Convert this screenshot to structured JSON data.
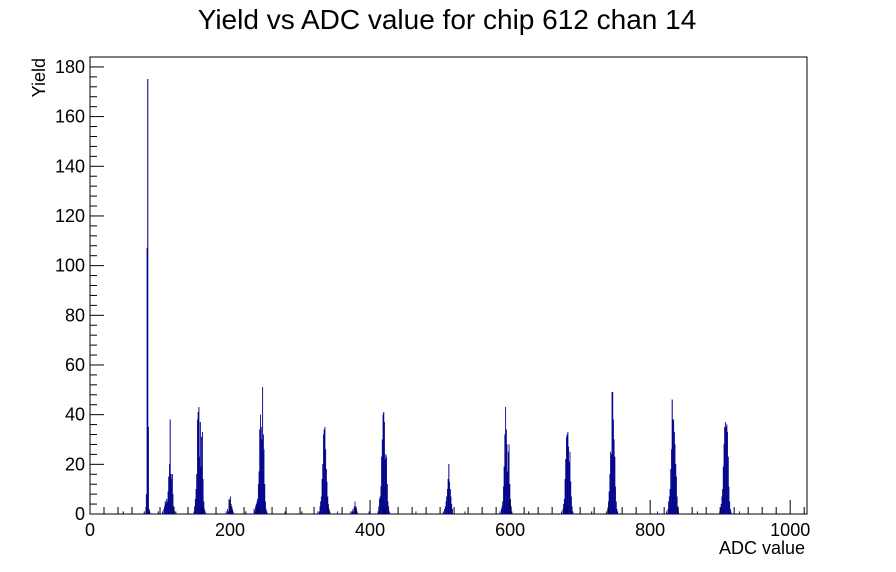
{
  "chart_data": {
    "type": "histogram",
    "title": "Yield vs ADC value for chip 612 chan 14",
    "xlabel": "ADC value",
    "ylabel": "Yield",
    "xlim": [
      0,
      1024
    ],
    "ylim": [
      0,
      184
    ],
    "x_ticks": [
      0,
      200,
      400,
      600,
      800,
      1000
    ],
    "y_ticks": [
      0,
      20,
      40,
      60,
      80,
      100,
      120,
      140,
      160,
      180
    ],
    "grid": false,
    "legend": "none",
    "line_color": "#00008b",
    "bin_width": 1,
    "bins": [
      [
        47,
        1
      ],
      [
        77,
        1
      ],
      [
        80,
        8
      ],
      [
        81,
        107
      ],
      [
        82,
        175
      ],
      [
        83,
        35
      ],
      [
        84,
        2
      ],
      [
        85,
        1
      ],
      [
        97,
        1
      ],
      [
        103,
        1
      ],
      [
        105,
        2
      ],
      [
        106,
        3
      ],
      [
        107,
        5
      ],
      [
        108,
        4
      ],
      [
        109,
        6
      ],
      [
        110,
        5
      ],
      [
        111,
        9
      ],
      [
        112,
        15
      ],
      [
        113,
        20
      ],
      [
        114,
        38
      ],
      [
        115,
        16
      ],
      [
        116,
        14
      ],
      [
        117,
        16
      ],
      [
        118,
        8
      ],
      [
        119,
        3
      ],
      [
        120,
        1
      ],
      [
        122,
        1
      ],
      [
        148,
        1
      ],
      [
        149,
        3
      ],
      [
        150,
        6
      ],
      [
        151,
        10
      ],
      [
        152,
        16
      ],
      [
        153,
        38
      ],
      [
        154,
        41
      ],
      [
        155,
        43
      ],
      [
        156,
        23
      ],
      [
        157,
        37
      ],
      [
        158,
        19
      ],
      [
        159,
        31
      ],
      [
        160,
        33
      ],
      [
        161,
        14
      ],
      [
        162,
        5
      ],
      [
        163,
        2
      ],
      [
        164,
        1
      ],
      [
        194,
        1
      ],
      [
        196,
        2
      ],
      [
        197,
        1
      ],
      [
        198,
        6
      ],
      [
        199,
        3
      ],
      [
        200,
        7
      ],
      [
        201,
        4
      ],
      [
        202,
        3
      ],
      [
        203,
        2
      ],
      [
        204,
        1
      ],
      [
        222,
        1
      ],
      [
        234,
        2
      ],
      [
        235,
        1
      ],
      [
        236,
        3
      ],
      [
        237,
        4
      ],
      [
        238,
        5
      ],
      [
        239,
        6
      ],
      [
        240,
        12
      ],
      [
        241,
        17
      ],
      [
        242,
        34
      ],
      [
        243,
        40
      ],
      [
        244,
        35
      ],
      [
        245,
        30
      ],
      [
        246,
        51
      ],
      [
        247,
        32
      ],
      [
        248,
        26
      ],
      [
        249,
        12
      ],
      [
        250,
        5
      ],
      [
        251,
        2
      ],
      [
        252,
        1
      ],
      [
        278,
        1
      ],
      [
        302,
        1
      ],
      [
        325,
        1
      ],
      [
        327,
        1
      ],
      [
        328,
        3
      ],
      [
        329,
        5
      ],
      [
        330,
        7
      ],
      [
        331,
        14
      ],
      [
        332,
        20
      ],
      [
        333,
        32
      ],
      [
        334,
        34
      ],
      [
        335,
        35
      ],
      [
        336,
        26
      ],
      [
        337,
        18
      ],
      [
        338,
        13
      ],
      [
        339,
        7
      ],
      [
        340,
        4
      ],
      [
        341,
        2
      ],
      [
        342,
        1
      ],
      [
        353,
        1
      ],
      [
        372,
        1
      ],
      [
        374,
        1
      ],
      [
        375,
        2
      ],
      [
        376,
        1
      ],
      [
        377,
        3
      ],
      [
        378,
        5
      ],
      [
        379,
        3
      ],
      [
        380,
        2
      ],
      [
        381,
        1
      ],
      [
        398,
        1
      ],
      [
        411,
        1
      ],
      [
        412,
        3
      ],
      [
        413,
        6
      ],
      [
        414,
        7
      ],
      [
        415,
        11
      ],
      [
        416,
        23
      ],
      [
        417,
        30
      ],
      [
        418,
        40
      ],
      [
        419,
        41
      ],
      [
        420,
        37
      ],
      [
        421,
        22
      ],
      [
        422,
        24
      ],
      [
        423,
        23
      ],
      [
        424,
        12
      ],
      [
        425,
        5
      ],
      [
        426,
        3
      ],
      [
        427,
        1
      ],
      [
        465,
        1
      ],
      [
        504,
        1
      ],
      [
        506,
        2
      ],
      [
        507,
        3
      ],
      [
        508,
        5
      ],
      [
        509,
        7
      ],
      [
        510,
        10
      ],
      [
        511,
        14
      ],
      [
        512,
        20
      ],
      [
        513,
        13
      ],
      [
        514,
        10
      ],
      [
        515,
        7
      ],
      [
        516,
        4
      ],
      [
        517,
        2
      ],
      [
        535,
        1
      ],
      [
        585,
        1
      ],
      [
        587,
        2
      ],
      [
        588,
        3
      ],
      [
        589,
        5
      ],
      [
        590,
        11
      ],
      [
        591,
        19
      ],
      [
        592,
        32
      ],
      [
        593,
        43
      ],
      [
        594,
        34
      ],
      [
        595,
        28
      ],
      [
        596,
        17
      ],
      [
        597,
        25
      ],
      [
        598,
        28
      ],
      [
        599,
        12
      ],
      [
        600,
        6
      ],
      [
        601,
        3
      ],
      [
        602,
        1
      ],
      [
        626,
        1
      ],
      [
        673,
        1
      ],
      [
        675,
        2
      ],
      [
        676,
        4
      ],
      [
        677,
        6
      ],
      [
        678,
        14
      ],
      [
        679,
        22
      ],
      [
        680,
        31
      ],
      [
        681,
        32
      ],
      [
        682,
        33
      ],
      [
        683,
        27
      ],
      [
        684,
        21
      ],
      [
        685,
        25
      ],
      [
        686,
        13
      ],
      [
        687,
        7
      ],
      [
        688,
        3
      ],
      [
        689,
        1
      ],
      [
        716,
        1
      ],
      [
        737,
        1
      ],
      [
        739,
        2
      ],
      [
        740,
        5
      ],
      [
        741,
        9
      ],
      [
        742,
        16
      ],
      [
        743,
        25
      ],
      [
        744,
        24
      ],
      [
        745,
        49
      ],
      [
        746,
        49
      ],
      [
        747,
        38
      ],
      [
        748,
        30
      ],
      [
        749,
        23
      ],
      [
        750,
        11
      ],
      [
        751,
        5
      ],
      [
        752,
        2
      ],
      [
        753,
        1
      ],
      [
        810,
        1
      ],
      [
        823,
        1
      ],
      [
        825,
        2
      ],
      [
        826,
        5
      ],
      [
        827,
        7
      ],
      [
        828,
        10
      ],
      [
        829,
        18
      ],
      [
        830,
        26
      ],
      [
        831,
        46
      ],
      [
        832,
        38
      ],
      [
        833,
        38
      ],
      [
        834,
        33
      ],
      [
        835,
        28
      ],
      [
        836,
        20
      ],
      [
        837,
        15
      ],
      [
        838,
        7
      ],
      [
        839,
        3
      ],
      [
        840,
        1
      ],
      [
        867,
        1
      ],
      [
        899,
        1
      ],
      [
        900,
        2
      ],
      [
        901,
        4
      ],
      [
        902,
        7
      ],
      [
        903,
        10
      ],
      [
        904,
        19
      ],
      [
        905,
        28
      ],
      [
        906,
        35
      ],
      [
        907,
        37
      ],
      [
        908,
        35
      ],
      [
        909,
        36
      ],
      [
        910,
        33
      ],
      [
        911,
        23
      ],
      [
        912,
        11
      ],
      [
        913,
        5
      ],
      [
        914,
        2
      ],
      [
        915,
        1
      ],
      [
        927,
        1
      ]
    ]
  }
}
